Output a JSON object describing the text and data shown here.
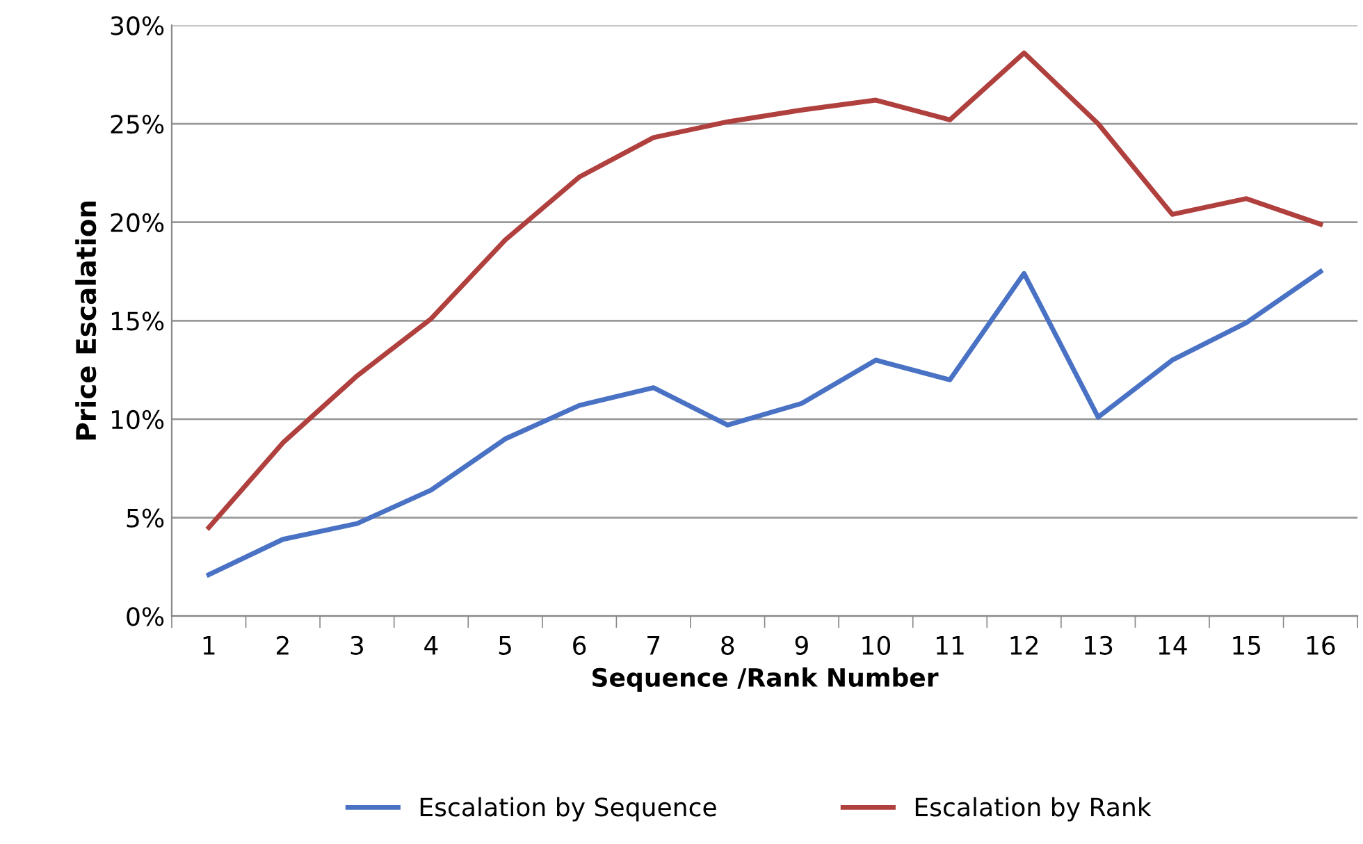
{
  "chart_data": {
    "type": "line",
    "xlabel": "Sequence /Rank Number",
    "ylabel": "Price Escalation",
    "categories": [
      "1",
      "2",
      "3",
      "4",
      "5",
      "6",
      "7",
      "8",
      "9",
      "10",
      "11",
      "12",
      "13",
      "14",
      "15",
      "16"
    ],
    "series": [
      {
        "name": "Escalation by Sequence",
        "color": "#4a72c4",
        "values": [
          2.1,
          3.9,
          4.7,
          6.4,
          9.0,
          10.7,
          11.6,
          9.7,
          10.8,
          13.0,
          12.0,
          17.4,
          10.1,
          13.0,
          14.9,
          17.5
        ]
      },
      {
        "name": "Escalation by Rank",
        "color": "#b0403e",
        "values": [
          4.5,
          8.8,
          12.2,
          15.1,
          19.1,
          22.3,
          24.3,
          25.1,
          25.7,
          26.2,
          25.2,
          28.6,
          25.0,
          20.4,
          21.2,
          19.9
        ]
      }
    ],
    "ylim": [
      0,
      30
    ],
    "yticks": [
      {
        "value": 0,
        "label": "0%"
      },
      {
        "value": 5,
        "label": "5%"
      },
      {
        "value": 10,
        "label": "10%"
      },
      {
        "value": 15,
        "label": "15%"
      },
      {
        "value": 20,
        "label": "20%"
      },
      {
        "value": 25,
        "label": "25%"
      },
      {
        "value": 30,
        "label": "30%"
      }
    ],
    "grid": "y",
    "legend": "bottom",
    "marker": "none",
    "line_style": "solid"
  }
}
